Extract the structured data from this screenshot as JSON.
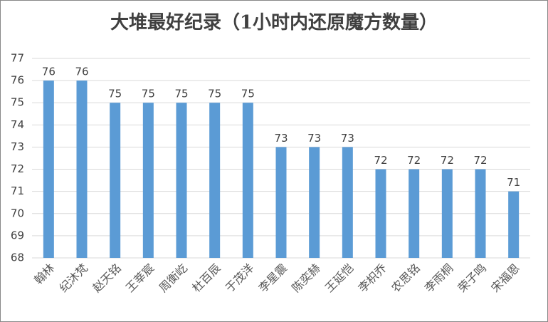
{
  "chart_data": {
    "type": "bar",
    "title": "大堆最好纪录（1小时内还原魔方数量）",
    "categories": [
      "翰林",
      "纪沐梵",
      "赵天铭",
      "王莘宸",
      "周衡屹",
      "杜百辰",
      "于茂洋",
      "李星震",
      "陈奕赫",
      "王延恺",
      "李枳乔",
      "农思铭",
      "李雨桐",
      "荣子鸣",
      "宋福恩"
    ],
    "values": [
      76,
      76,
      75,
      75,
      75,
      75,
      75,
      73,
      73,
      73,
      72,
      72,
      72,
      72,
      71
    ],
    "color": "#5b9bd5",
    "ylim": [
      68,
      77
    ],
    "yticks": [
      68,
      69,
      70,
      71,
      72,
      73,
      74,
      75,
      76,
      77
    ],
    "grid": true
  }
}
